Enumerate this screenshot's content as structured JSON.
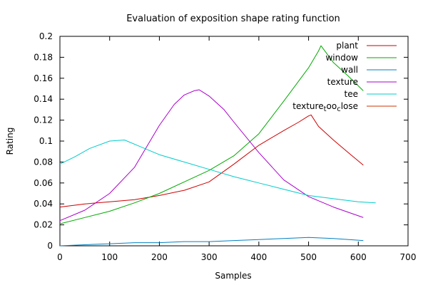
{
  "chart_data": {
    "type": "line",
    "title": "Evaluation of exposition shape rating function",
    "xlabel": "Samples",
    "ylabel": "Rating",
    "xlim": [
      0,
      700
    ],
    "ylim": [
      0,
      0.2
    ],
    "xticks": [
      0,
      100,
      200,
      300,
      400,
      500,
      600,
      700
    ],
    "xtick_labels": [
      "0",
      "100",
      "200",
      "300",
      "400",
      "500",
      "600",
      "700"
    ],
    "yticks": [
      0,
      0.02,
      0.04,
      0.06,
      0.08,
      0.1,
      0.12,
      0.14,
      0.16,
      0.18,
      0.2
    ],
    "ytick_labels": [
      "0",
      "0.02",
      "0.04",
      "0.06",
      "0.08",
      "0.1",
      "0.12",
      "0.14",
      "0.16",
      "0.18",
      "0.2"
    ],
    "grid": false,
    "legend_position": "top-right",
    "series": [
      {
        "name": "plant",
        "color": "#cc0000",
        "x": [
          0,
          50,
          100,
          150,
          200,
          250,
          300,
          350,
          400,
          450,
          480,
          500,
          505,
          520,
          550,
          580,
          610
        ],
        "y": [
          0.037,
          0.04,
          0.042,
          0.044,
          0.048,
          0.053,
          0.061,
          0.078,
          0.096,
          0.11,
          0.118,
          0.124,
          0.125,
          0.114,
          0.101,
          0.089,
          0.077
        ]
      },
      {
        "name": "window",
        "color": "#00aa00",
        "x": [
          0,
          50,
          100,
          150,
          200,
          250,
          300,
          350,
          400,
          450,
          500,
          520,
          525,
          550,
          580,
          610
        ],
        "y": [
          0.021,
          0.027,
          0.033,
          0.041,
          0.05,
          0.061,
          0.072,
          0.086,
          0.107,
          0.138,
          0.17,
          0.186,
          0.191,
          0.175,
          0.162,
          0.148
        ]
      },
      {
        "name": "wall",
        "color": "#0080c0",
        "x": [
          0,
          50,
          100,
          150,
          200,
          250,
          300,
          350,
          400,
          450,
          500,
          550,
          610
        ],
        "y": [
          0.0,
          0.001,
          0.002,
          0.003,
          0.003,
          0.004,
          0.004,
          0.005,
          0.006,
          0.007,
          0.008,
          0.007,
          0.005
        ]
      },
      {
        "name": "texture",
        "color": "#aa00cc",
        "x": [
          0,
          50,
          100,
          150,
          200,
          230,
          250,
          270,
          280,
          300,
          330,
          350,
          400,
          450,
          500,
          550,
          610
        ],
        "y": [
          0.024,
          0.034,
          0.05,
          0.075,
          0.115,
          0.135,
          0.144,
          0.148,
          0.149,
          0.143,
          0.13,
          0.118,
          0.089,
          0.063,
          0.047,
          0.037,
          0.027
        ]
      },
      {
        "name": "tee",
        "color": "#00cccc",
        "x": [
          0,
          30,
          60,
          100,
          130,
          160,
          200,
          250,
          300,
          350,
          400,
          450,
          500,
          550,
          600,
          635
        ],
        "y": [
          0.078,
          0.085,
          0.093,
          0.1,
          0.101,
          0.095,
          0.087,
          0.08,
          0.073,
          0.066,
          0.06,
          0.054,
          0.048,
          0.045,
          0.042,
          0.041
        ]
      },
      {
        "name": "texture_too_close",
        "color": "#cc3300",
        "x": [],
        "y": []
      }
    ],
    "legend_texture_too_close": {
      "part1": "texture",
      "sub_t": "t",
      "part2": "oo",
      "sub_c": "c",
      "part3": "lose"
    }
  }
}
